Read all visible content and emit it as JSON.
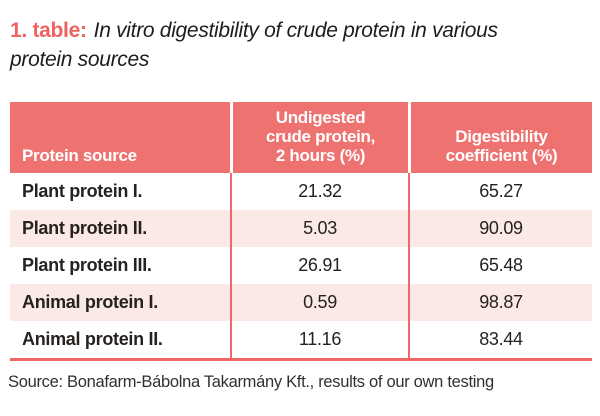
{
  "caption": {
    "label": "1. table:",
    "title": "In vitro digestibility of crude protein in various\nprotein sources"
  },
  "table": {
    "columns": [
      "Protein source",
      "Undigested\ncrude protein,\n2 hours (%)",
      "Digestibility\ncoefficient (%)"
    ],
    "rows": [
      {
        "name": "Plant protein I.",
        "undigested": "21.32",
        "coefficient": "65.27"
      },
      {
        "name": "Plant protein II.",
        "undigested": "5.03",
        "coefficient": "90.09"
      },
      {
        "name": "Plant protein III.",
        "undigested": "26.91",
        "coefficient": "65.48"
      },
      {
        "name": "Animal protein I.",
        "undigested": "0.59",
        "coefficient": "98.87"
      },
      {
        "name": "Animal protein II.",
        "undigested": "11.16",
        "coefficient": "83.44"
      }
    ]
  },
  "source_note": "Source: Bonafarm-Bábolna Takarmány Kft., results of our own testing",
  "colors": {
    "header_bg": "#ed7270",
    "alt_row_bg": "#fbe9e5",
    "divider": "#f0696a",
    "bottom_border": "#ee6765",
    "caption_accent": "#ed6361"
  }
}
